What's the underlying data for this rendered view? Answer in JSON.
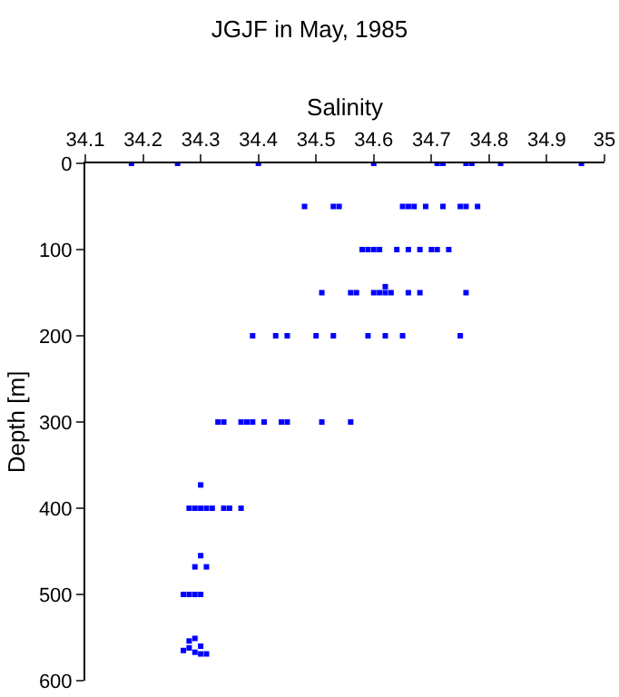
{
  "chart_data": {
    "type": "scatter",
    "title": "JGJF in May, 1985",
    "xlabel": "Salinity",
    "ylabel": "Depth [m]",
    "xlim": [
      34.1,
      35
    ],
    "xticks": [
      34.1,
      34.2,
      34.3,
      34.4,
      34.5,
      34.6,
      34.7,
      34.8,
      34.9,
      35
    ],
    "ylim": [
      600,
      0
    ],
    "yticks": [
      0,
      100,
      200,
      300,
      400,
      500,
      600
    ],
    "legend": false,
    "marker": "square",
    "series": [
      {
        "color": "#0000ff",
        "x": [
          34.18,
          34.26,
          34.4,
          34.6,
          34.71,
          34.72,
          34.76,
          34.77,
          34.82,
          34.96,
          34.48,
          34.53,
          34.54,
          34.65,
          34.66,
          34.67,
          34.69,
          34.72,
          34.75,
          34.76,
          34.78,
          34.58,
          34.59,
          34.6,
          34.61,
          34.64,
          34.66,
          34.68,
          34.7,
          34.71,
          34.73,
          34.62,
          34.51,
          34.56,
          34.57,
          34.6,
          34.61,
          34.62,
          34.63,
          34.66,
          34.68,
          34.76,
          34.39,
          34.43,
          34.45,
          34.5,
          34.53,
          34.59,
          34.62,
          34.65,
          34.75,
          34.33,
          34.34,
          34.37,
          34.38,
          34.39,
          34.41,
          34.44,
          34.45,
          34.51,
          34.56,
          34.3,
          34.28,
          34.29,
          34.3,
          34.31,
          34.32,
          34.34,
          34.35,
          34.37,
          34.3,
          34.29,
          34.31,
          34.27,
          34.28,
          34.29,
          34.3,
          34.29,
          34.28,
          34.28,
          34.27,
          34.3,
          34.29,
          34.3,
          34.31
        ],
        "values": [
          0,
          0,
          0,
          0,
          0,
          0,
          0,
          0,
          0,
          0,
          50,
          50,
          50,
          50,
          50,
          50,
          50,
          50,
          50,
          50,
          50,
          100,
          100,
          100,
          100,
          100,
          100,
          100,
          100,
          100,
          100,
          143,
          150,
          150,
          150,
          150,
          150,
          150,
          150,
          150,
          150,
          150,
          200,
          200,
          200,
          200,
          200,
          200,
          200,
          200,
          200,
          300,
          300,
          300,
          300,
          300,
          300,
          300,
          300,
          300,
          300,
          373,
          400,
          400,
          400,
          400,
          400,
          400,
          400,
          400,
          455,
          468,
          468,
          500,
          500,
          500,
          500,
          551,
          554,
          562,
          565,
          560,
          567,
          569,
          569
        ]
      }
    ]
  }
}
